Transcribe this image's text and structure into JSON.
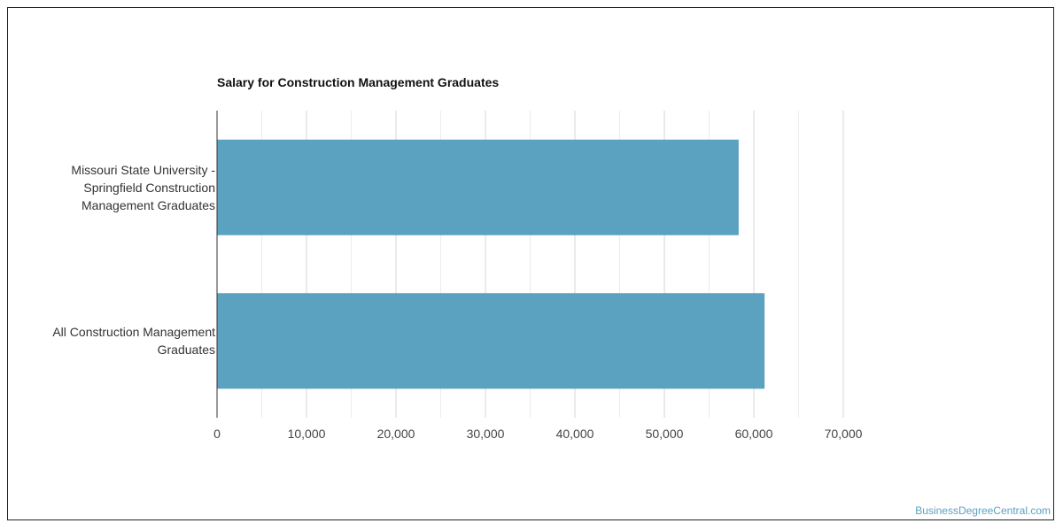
{
  "chart_data": {
    "type": "bar",
    "orientation": "horizontal",
    "title": "Salary for Construction Management Graduates",
    "xlabel": "",
    "ylabel": "",
    "categories": [
      "Missouri State University - Springfield Construction Management Graduates",
      "All Construction Management Graduates"
    ],
    "values": [
      58300,
      61200
    ],
    "xlim": [
      0,
      70000
    ],
    "ticks": [
      "0",
      "10,000",
      "20,000",
      "30,000",
      "40,000",
      "50,000",
      "60,000",
      "70,000"
    ],
    "tick_values": [
      0,
      10000,
      20000,
      30000,
      40000,
      50000,
      60000,
      70000
    ],
    "bar_color": "#5ba1c0",
    "grid": true,
    "legend": "none"
  },
  "watermark": "BusinessDegreeCentral.com"
}
